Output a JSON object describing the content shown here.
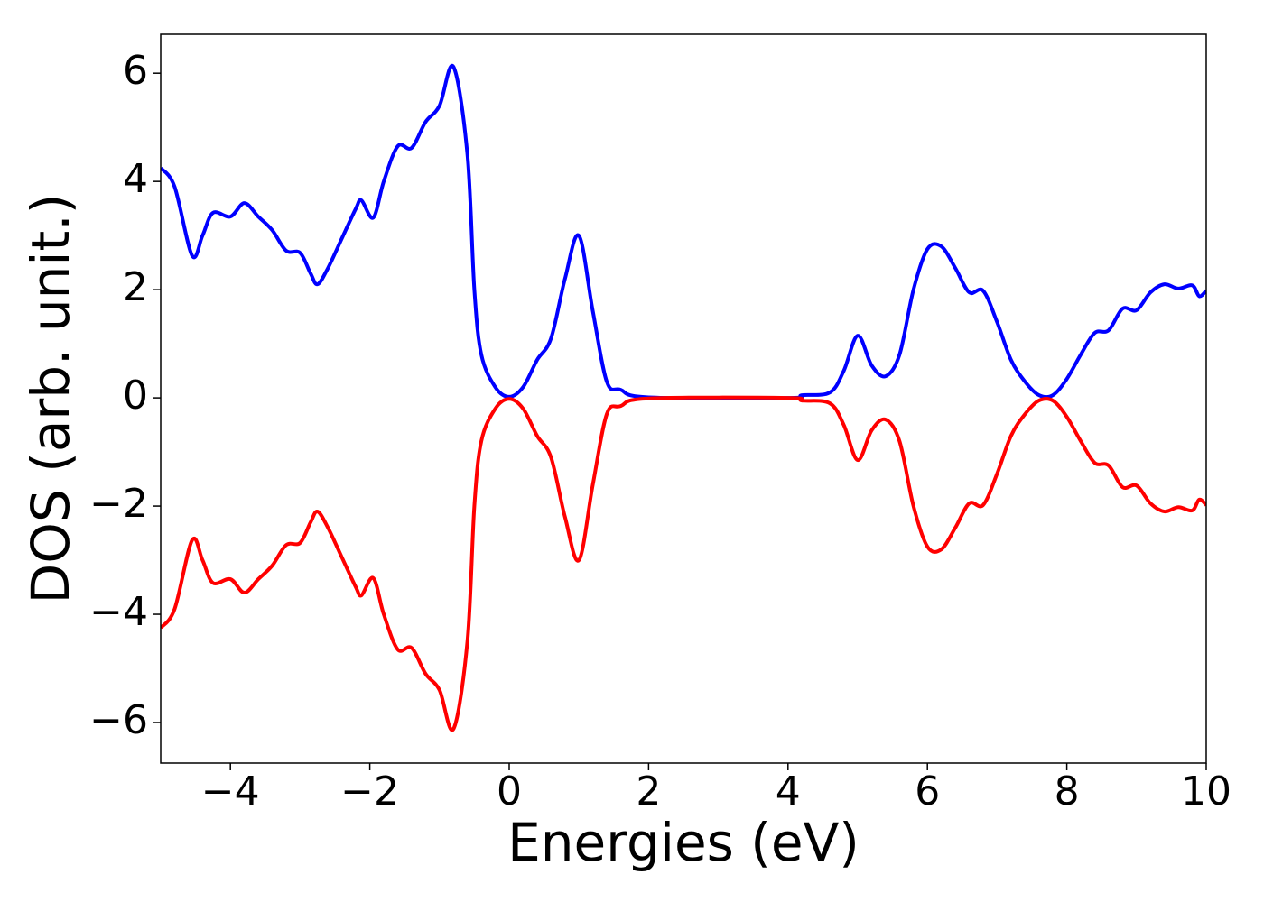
{
  "chart_data": {
    "type": "line",
    "xlabel": "Energies (eV)",
    "ylabel": "DOS (arb. unit.)",
    "x": [
      -5,
      -4.8,
      -4.55,
      -4.4,
      -4.25,
      -4.0,
      -3.8,
      -3.6,
      -3.4,
      -3.2,
      -3.0,
      -2.85,
      -2.75,
      -2.6,
      -2.4,
      -2.2,
      -2.12,
      -1.95,
      -1.8,
      -1.6,
      -1.4,
      -1.2,
      -1.0,
      -0.8,
      -0.6,
      -0.5,
      -0.4,
      -0.2,
      0,
      0.2,
      0.4,
      0.6,
      0.8,
      1.0,
      1.2,
      1.4,
      1.6,
      2.0,
      4.0,
      4.2,
      4.6,
      4.8,
      5.0,
      5.2,
      5.4,
      5.6,
      5.8,
      6.0,
      6.2,
      6.4,
      6.6,
      6.8,
      7.0,
      7.2,
      7.4,
      7.6,
      7.8,
      8.0,
      8.2,
      8.4,
      8.6,
      8.8,
      9.0,
      9.2,
      9.4,
      9.6,
      9.8,
      9.9,
      10
    ],
    "series": [
      {
        "color": "#0000ff",
        "values": [
          4.25,
          3.9,
          2.63,
          3.0,
          3.42,
          3.35,
          3.6,
          3.35,
          3.1,
          2.72,
          2.68,
          2.3,
          2.1,
          2.4,
          2.95,
          3.5,
          3.65,
          3.33,
          4.0,
          4.65,
          4.62,
          5.1,
          5.4,
          6.12,
          4.5,
          2.0,
          0.8,
          0.2,
          0.02,
          0.2,
          0.7,
          1.1,
          2.2,
          3.0,
          1.6,
          0.3,
          0.15,
          0.01,
          0.0,
          0.05,
          0.1,
          0.5,
          1.15,
          0.6,
          0.4,
          0.8,
          2.0,
          2.75,
          2.8,
          2.4,
          1.95,
          1.98,
          1.4,
          0.7,
          0.3,
          0.05,
          0.05,
          0.35,
          0.8,
          1.2,
          1.25,
          1.65,
          1.62,
          1.95,
          2.1,
          2.02,
          2.08,
          1.88,
          1.98
        ]
      },
      {
        "color": "#ff0000",
        "values": [
          -4.25,
          -3.9,
          -2.63,
          -3.0,
          -3.42,
          -3.35,
          -3.6,
          -3.35,
          -3.1,
          -2.72,
          -2.68,
          -2.3,
          -2.1,
          -2.4,
          -2.95,
          -3.5,
          -3.65,
          -3.33,
          -4.0,
          -4.65,
          -4.62,
          -5.1,
          -5.4,
          -6.12,
          -4.5,
          -2.0,
          -0.8,
          -0.2,
          -0.02,
          -0.2,
          -0.7,
          -1.1,
          -2.2,
          -3.0,
          -1.6,
          -0.3,
          -0.15,
          -0.01,
          0.0,
          -0.05,
          -0.1,
          -0.5,
          -1.15,
          -0.6,
          -0.4,
          -0.8,
          -2.0,
          -2.75,
          -2.8,
          -2.4,
          -1.95,
          -1.98,
          -1.4,
          -0.7,
          -0.3,
          -0.05,
          -0.05,
          -0.35,
          -0.8,
          -1.2,
          -1.25,
          -1.65,
          -1.62,
          -1.95,
          -2.1,
          -2.02,
          -2.08,
          -1.88,
          -1.98
        ]
      }
    ],
    "xlim": [
      -5,
      10
    ],
    "ylim": [
      -6.75,
      6.72
    ],
    "xticks": [
      {
        "value": -4,
        "label": "−4"
      },
      {
        "value": -2,
        "label": "−2"
      },
      0,
      2,
      4,
      6,
      8,
      10
    ],
    "yticks": [
      {
        "value": -6,
        "label": "−6"
      },
      {
        "value": -4,
        "label": "−4"
      },
      {
        "value": -2,
        "label": "−2"
      },
      0,
      2,
      4,
      6
    ],
    "grid": false
  }
}
